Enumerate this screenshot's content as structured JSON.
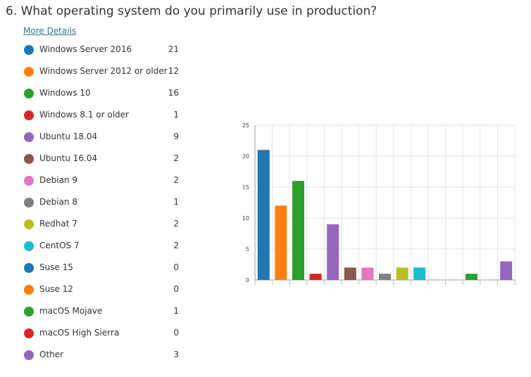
{
  "question": {
    "title": "6.  What operating system do you primarily use in production?",
    "more_details": "More Details"
  },
  "colors": {
    "blue": "#1f77b4",
    "orange": "#ff7f0e",
    "green": "#2ca02c",
    "red": "#d62728",
    "purple": "#9467bd",
    "brown": "#8c564b",
    "pink": "#e377c2",
    "gray": "#7f7f7f",
    "olive": "#bcbd22",
    "cyan": "#17becf"
  },
  "chart_data": {
    "type": "bar",
    "categories": [
      "Windows Server 2016",
      "Windows Server 2012 or older",
      "Windows 10",
      "Windows 8.1 or older",
      "Ubuntu 18.04",
      "Ubuntu 16.04",
      "Debian 9",
      "Debian 8",
      "Redhat 7",
      "CentOS 7",
      "Suse 15",
      "Suse 12",
      "macOS Mojave",
      "macOS High Sierra",
      "Other"
    ],
    "values": [
      21,
      12,
      16,
      1,
      9,
      2,
      2,
      1,
      2,
      2,
      0,
      0,
      1,
      0,
      3
    ],
    "colors": [
      "#1f77b4",
      "#ff7f0e",
      "#2ca02c",
      "#d62728",
      "#9467bd",
      "#8c564b",
      "#e377c2",
      "#7f7f7f",
      "#bcbd22",
      "#17becf",
      "#1f77b4",
      "#ff7f0e",
      "#2ca02c",
      "#d62728",
      "#9467bd"
    ],
    "ylim": [
      0,
      25
    ],
    "yticks": [
      "0",
      "5",
      "10",
      "15",
      "20",
      "25"
    ],
    "grid": true,
    "legend_placement": "left"
  }
}
